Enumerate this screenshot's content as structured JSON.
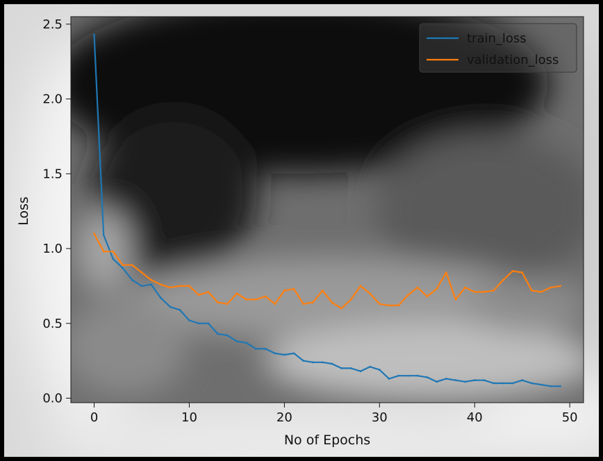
{
  "chart_data": {
    "type": "line",
    "title": "",
    "xlabel": "No of Epochs",
    "ylabel": "Loss",
    "xlim": [
      -2.45,
      51.45
    ],
    "ylim": [
      -0.03,
      2.55
    ],
    "xticks": [
      0,
      10,
      20,
      30,
      40,
      50
    ],
    "yticks": [
      0.0,
      0.5,
      1.0,
      1.5,
      2.0,
      2.5
    ],
    "xtick_labels": [
      "0",
      "10",
      "20",
      "30",
      "40",
      "50"
    ],
    "ytick_labels": [
      "0.0",
      "0.5",
      "1.0",
      "1.5",
      "2.0",
      "2.5"
    ],
    "grid": false,
    "legend_position": "top-right",
    "x": [
      0,
      1,
      2,
      3,
      4,
      5,
      6,
      7,
      8,
      9,
      10,
      11,
      12,
      13,
      14,
      15,
      16,
      17,
      18,
      19,
      20,
      21,
      22,
      23,
      24,
      25,
      26,
      27,
      28,
      29,
      30,
      31,
      32,
      33,
      34,
      35,
      36,
      37,
      38,
      39,
      40,
      41,
      42,
      43,
      44,
      45,
      46,
      47,
      48,
      49
    ],
    "series": [
      {
        "name": "train_loss",
        "color": "#1f77b4",
        "values": [
          2.43,
          1.09,
          0.93,
          0.87,
          0.79,
          0.75,
          0.76,
          0.67,
          0.61,
          0.59,
          0.52,
          0.5,
          0.5,
          0.43,
          0.42,
          0.38,
          0.37,
          0.33,
          0.33,
          0.3,
          0.29,
          0.3,
          0.25,
          0.24,
          0.24,
          0.23,
          0.2,
          0.2,
          0.18,
          0.21,
          0.19,
          0.13,
          0.15,
          0.15,
          0.15,
          0.14,
          0.11,
          0.13,
          0.12,
          0.11,
          0.12,
          0.12,
          0.1,
          0.1,
          0.1,
          0.12,
          0.1,
          0.09,
          0.08,
          0.08
        ]
      },
      {
        "name": "validation_loss",
        "color": "#ff7f0e",
        "values": [
          1.1,
          0.98,
          0.98,
          0.89,
          0.89,
          0.84,
          0.79,
          0.76,
          0.74,
          0.75,
          0.75,
          0.69,
          0.71,
          0.64,
          0.63,
          0.7,
          0.66,
          0.66,
          0.68,
          0.63,
          0.72,
          0.73,
          0.63,
          0.64,
          0.72,
          0.64,
          0.6,
          0.66,
          0.75,
          0.7,
          0.63,
          0.62,
          0.62,
          0.69,
          0.74,
          0.68,
          0.73,
          0.84,
          0.66,
          0.74,
          0.71,
          0.71,
          0.72,
          0.79,
          0.85,
          0.84,
          0.72,
          0.71,
          0.74,
          0.75
        ]
      }
    ]
  }
}
